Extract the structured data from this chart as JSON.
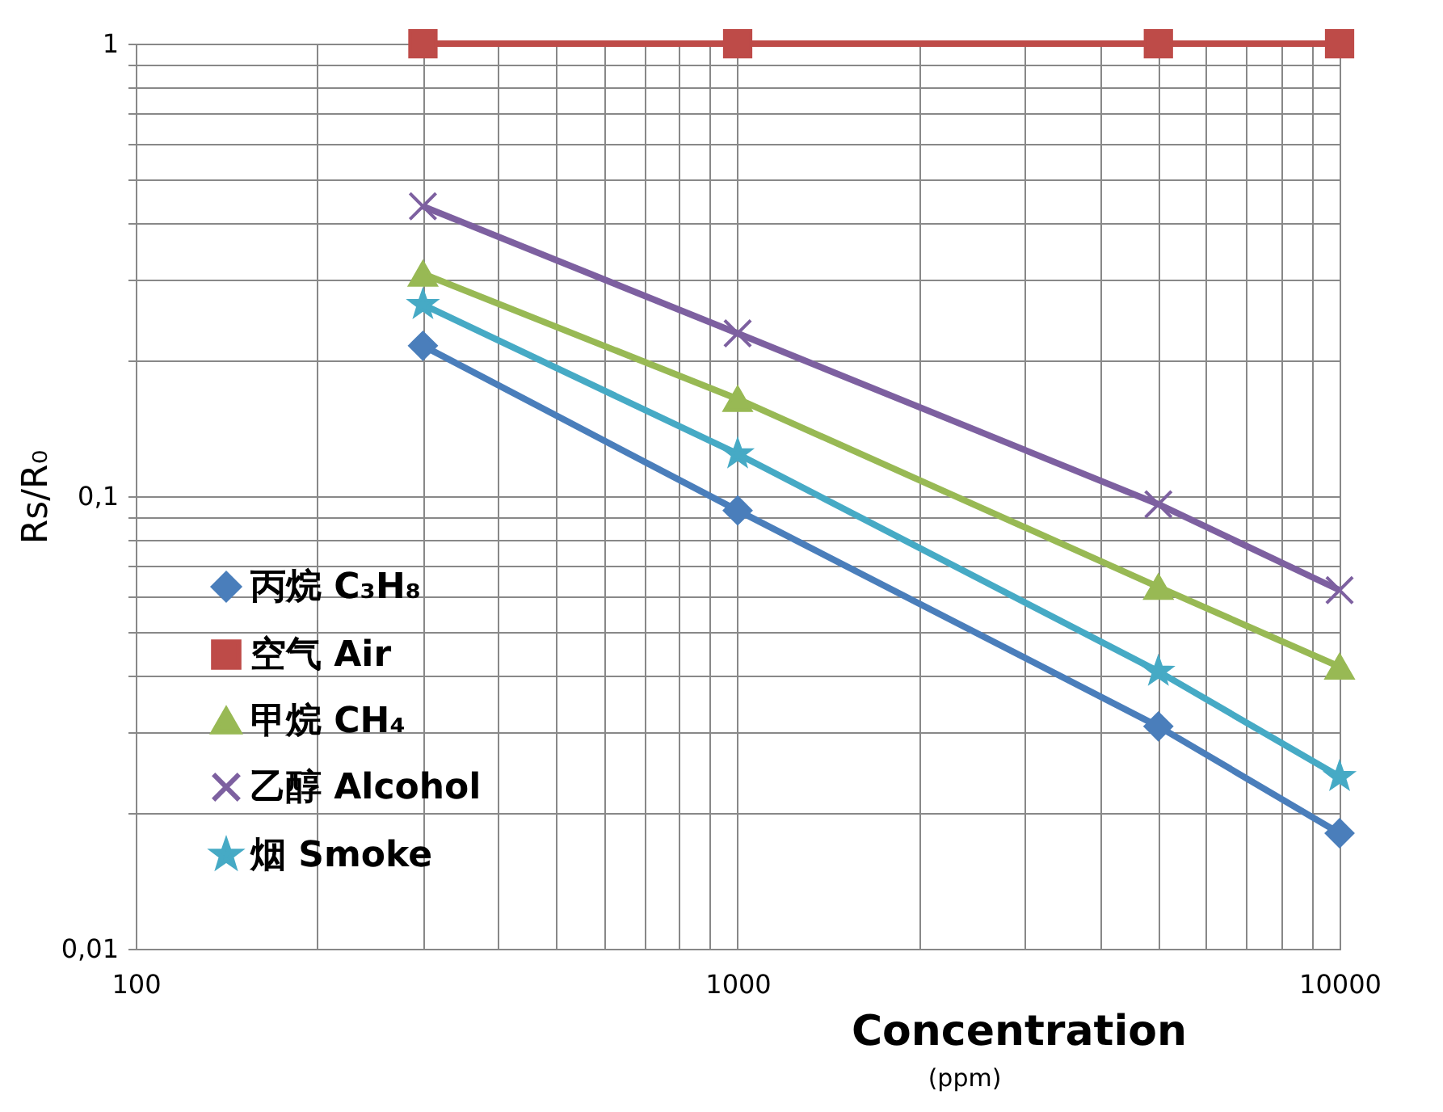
{
  "chart_data": {
    "type": "line",
    "xlabel": "Concentration",
    "ylabel": "Rs/R₀",
    "annotations": [
      "(ppm)"
    ],
    "x": [
      300,
      1000,
      5000,
      10000
    ],
    "series": [
      {
        "name": "丙烷 C₃H₈",
        "color": "#4a7ebb",
        "marker": "diamond",
        "values": [
          0.215,
          0.093,
          0.031,
          0.018
        ]
      },
      {
        "name": "空气 Air",
        "color": "#be4b48",
        "marker": "square",
        "values": [
          1,
          1,
          1,
          1
        ]
      },
      {
        "name": "甲烷 CH₄",
        "color": "#98b954",
        "marker": "triangle",
        "values": [
          0.31,
          0.164,
          0.063,
          0.042
        ]
      },
      {
        "name": "乙醇 Alcohol",
        "color": "#7d60a0",
        "marker": "cross",
        "values": [
          0.437,
          0.229,
          0.096,
          0.062
        ]
      },
      {
        "name": "烟    Smoke",
        "color": "#46aac5",
        "marker": "star",
        "values": [
          0.265,
          0.124,
          0.041,
          0.024
        ]
      }
    ],
    "log": "xy",
    "xlim": [
      100,
      10000
    ],
    "ylim": [
      0.01,
      1
    ],
    "xticks": [
      100,
      {
        "value": 200,
        "label": null
      },
      {
        "value": 300,
        "label": null
      },
      {
        "value": 400,
        "label": null
      },
      {
        "value": 500,
        "label": null
      },
      {
        "value": 600,
        "label": null
      },
      {
        "value": 700,
        "label": null
      },
      {
        "value": 800,
        "label": null
      },
      {
        "value": 900,
        "label": null
      },
      1000,
      {
        "value": 2000,
        "label": null
      },
      {
        "value": 3000,
        "label": null
      },
      {
        "value": 4000,
        "label": null
      },
      {
        "value": 5000,
        "label": null
      },
      {
        "value": 6000,
        "label": null
      },
      {
        "value": 7000,
        "label": null
      },
      {
        "value": 8000,
        "label": null
      },
      {
        "value": 9000,
        "label": null
      },
      10000
    ],
    "yticks": [
      {
        "value": 0.01,
        "label": "0,01"
      },
      {
        "value": 0.02,
        "label": null
      },
      {
        "value": 0.03,
        "label": null
      },
      {
        "value": 0.04,
        "label": null
      },
      {
        "value": 0.05,
        "label": null
      },
      {
        "value": 0.06,
        "label": null
      },
      {
        "value": 0.07,
        "label": null
      },
      {
        "value": 0.08,
        "label": null
      },
      {
        "value": 0.09,
        "label": null
      },
      {
        "value": 0.1,
        "label": "0,1"
      },
      {
        "value": 0.2,
        "label": null
      },
      {
        "value": 0.3,
        "label": null
      },
      {
        "value": 0.4,
        "label": null
      },
      {
        "value": 0.5,
        "label": null
      },
      {
        "value": 0.6,
        "label": null
      },
      {
        "value": 0.7,
        "label": null
      },
      {
        "value": 0.8,
        "label": null
      },
      {
        "value": 0.9,
        "label": null
      },
      1
    ],
    "grid": true,
    "legend": "bottom left",
    "line_style": "solid"
  }
}
